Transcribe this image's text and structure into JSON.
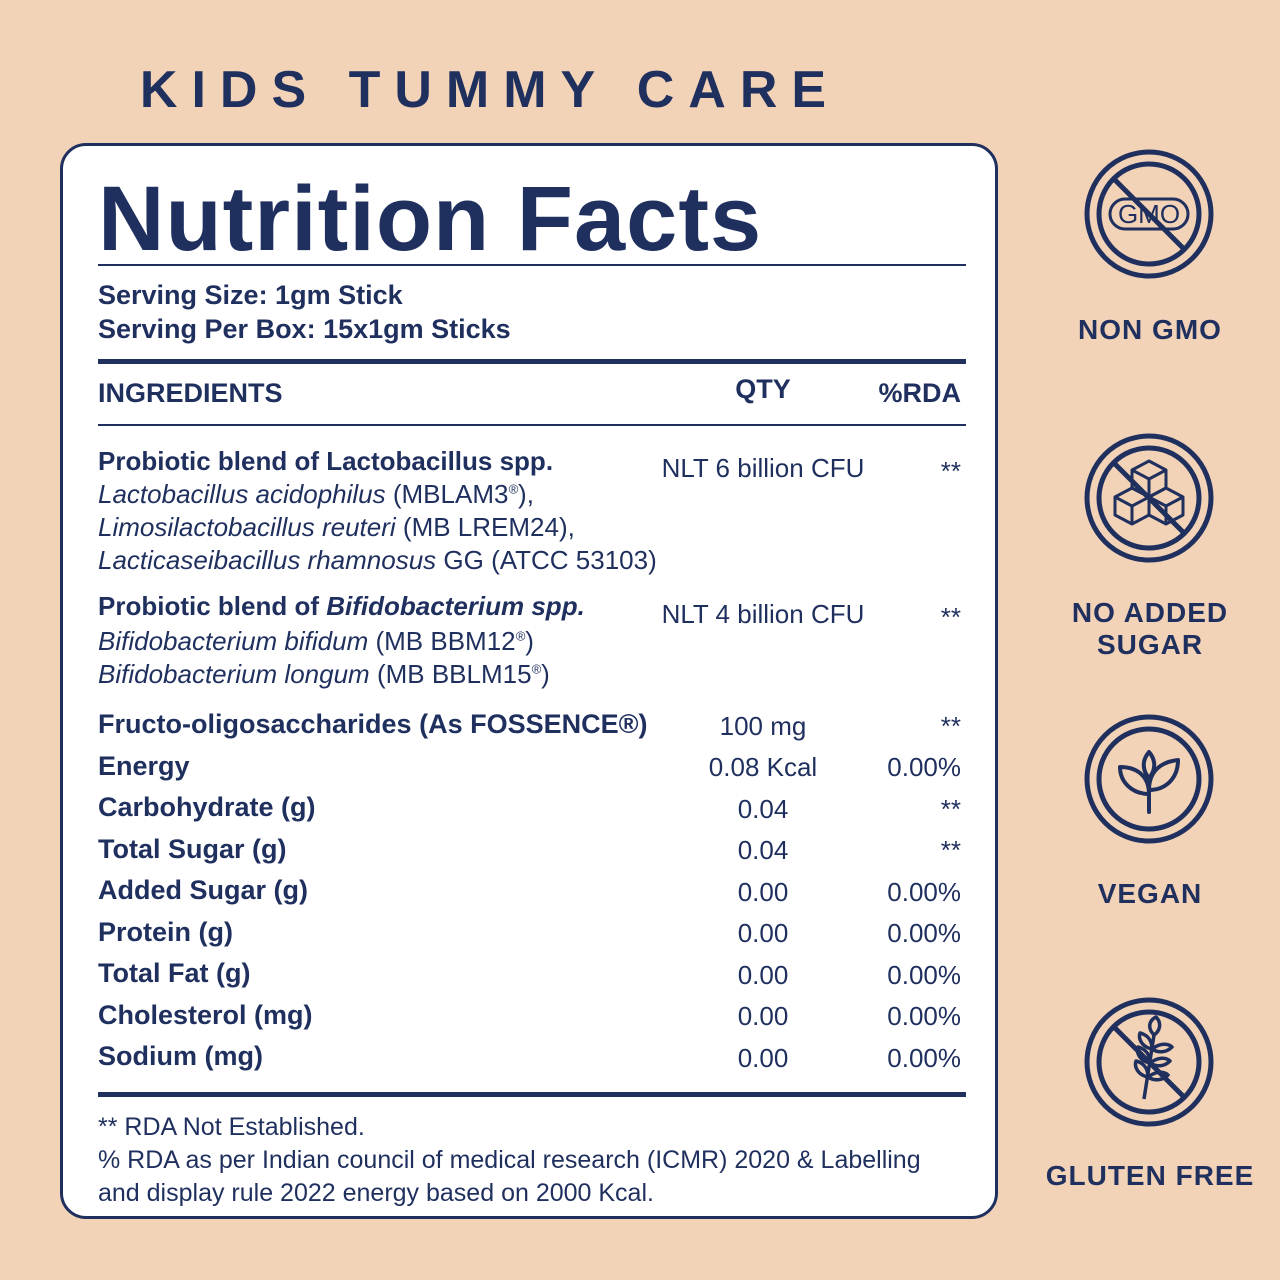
{
  "heading": "KIDS TUMMY CARE",
  "panel": {
    "title": "Nutrition Facts",
    "serving_size": "Serving Size: 1gm Stick",
    "serving_per_box": "Serving Per Box: 15x1gm Sticks",
    "columns": {
      "ingredients": "INGREDIENTS",
      "qty": "QTY",
      "rda": "%RDA"
    },
    "blends": [
      {
        "title": "Probiotic blend of Lactobacillus spp.",
        "qty": "NLT 6 billion CFU",
        "rda": "**",
        "strains": [
          {
            "name": "Lactobacillus acidophilus",
            "code": "(MBLAM3",
            "mark": "®",
            "suffix": "),"
          },
          {
            "name": "Limosilactobacillus reuteri",
            "code": "(MB LREM24),",
            "mark": "",
            "suffix": ""
          },
          {
            "name": "Lacticaseibacillus rhamnosus",
            "code": "GG (ATCC 53103)",
            "mark": "",
            "suffix": ""
          }
        ]
      },
      {
        "title_prefix": "Probiotic blend of ",
        "title_italic": "Bifidobacterium spp.",
        "qty": "NLT 4 billion CFU",
        "rda": "**",
        "strains": [
          {
            "name": "Bifidobacterium bifidum",
            "code": "(MB BBM12",
            "mark": "®",
            "suffix": ")"
          },
          {
            "name": "Bifidobacterium longum",
            "code": "(MB BBLM15",
            "mark": "®",
            "suffix": ")"
          }
        ]
      }
    ],
    "rows": [
      {
        "label": "Fructo-oligosaccharides (As FOSSENCE®)",
        "qty": "100 mg",
        "rda": "**"
      },
      {
        "label": "Energy",
        "qty": "0.08 Kcal",
        "rda": "0.00%"
      },
      {
        "label": "Carbohydrate (g)",
        "qty": "0.04",
        "rda": "**"
      },
      {
        "label": "Total Sugar (g)",
        "qty": "0.04",
        "rda": "**"
      },
      {
        "label": "Added Sugar (g)",
        "qty": "0.00",
        "rda": "0.00%"
      },
      {
        "label": "Protein (g)",
        "qty": "0.00",
        "rda": "0.00%"
      },
      {
        "label": "Total Fat (g)",
        "qty": "0.00",
        "rda": "0.00%"
      },
      {
        "label": "Cholesterol (mg)",
        "qty": "0.00",
        "rda": "0.00%"
      },
      {
        "label": "Sodium (mg)",
        "qty": "0.00",
        "rda": "0.00%"
      }
    ],
    "footnotes": [
      "** RDA Not Established.",
      "% RDA as per Indian council of medical research (ICMR) 2020 & Labelling and display rule 2022 energy based on 2000 Kcal."
    ]
  },
  "badges": [
    {
      "icon": "no-gmo-icon",
      "label": "NON GMO",
      "icon_text": "GMO"
    },
    {
      "icon": "no-sugar-cubes-icon",
      "label": "NO ADDED SUGAR"
    },
    {
      "icon": "leaf-icon",
      "label": "VEGAN"
    },
    {
      "icon": "no-wheat-icon",
      "label": "GLUTEN FREE"
    }
  ],
  "colors": {
    "navy": "#1f2f5e",
    "background": "#f2d3b7",
    "panel": "#ffffff"
  }
}
